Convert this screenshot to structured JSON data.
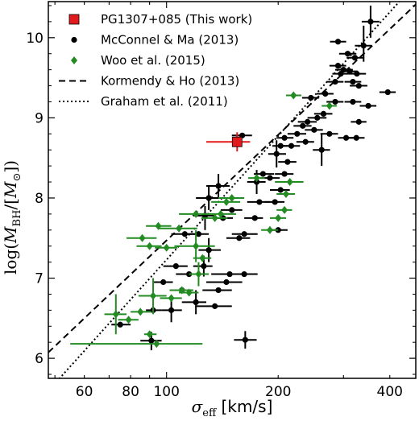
{
  "chart_data": {
    "type": "scatter",
    "x_scale": "log",
    "xlim": [
      48,
      470
    ],
    "ylim": [
      5.75,
      10.45
    ],
    "x_ticks": [
      60,
      80,
      100,
      200,
      400
    ],
    "y_ticks": [
      6,
      7,
      8,
      9,
      10
    ],
    "xlabel": {
      "symbol": "σ",
      "subscript": "eff",
      "unit": " [km/s]"
    },
    "ylabel": {
      "prefix": "log(",
      "m1": "M",
      "s1": "BH",
      "slash": "/[",
      "m2": "M",
      "s2": "⊙",
      "suffix": "])"
    },
    "legend_position": "top-left",
    "series": [
      {
        "name": "PG1307+085 (This work)",
        "marker": "square",
        "color": "#e31a1c",
        "points": [
          {
            "x": 155,
            "y": 8.7,
            "xlo": 128,
            "xhi": 168,
            "ylo": 8.58,
            "yhi": 8.82
          }
        ]
      },
      {
        "name": "McConnel & Ma (2013)",
        "marker": "circle",
        "color": "#000000",
        "points": [
          {
            "x": 75,
            "y": 6.42,
            "xlo": 71,
            "xhi": 80
          },
          {
            "x": 91,
            "y": 6.22,
            "xlo": 85,
            "xhi": 97,
            "ylo": 6.1,
            "yhi": 6.33
          },
          {
            "x": 92,
            "y": 6.6,
            "xlo": 88,
            "xhi": 97
          },
          {
            "x": 103,
            "y": 6.6,
            "xlo": 97,
            "xhi": 110,
            "ylo": 6.45,
            "yhi": 6.75
          },
          {
            "x": 98,
            "y": 6.95,
            "xlo": 92,
            "xhi": 104
          },
          {
            "x": 106,
            "y": 7.15,
            "xlo": 98,
            "xhi": 114
          },
          {
            "x": 110,
            "y": 6.85,
            "xlo": 102,
            "xhi": 118
          },
          {
            "x": 115,
            "y": 7.05,
            "xlo": 106,
            "xhi": 124
          },
          {
            "x": 120,
            "y": 6.7,
            "xlo": 110,
            "xhi": 128,
            "ylo": 6.55,
            "yhi": 6.85
          },
          {
            "x": 135,
            "y": 6.65,
            "xlo": 120,
            "xhi": 150
          },
          {
            "x": 138,
            "y": 6.85,
            "xlo": 125,
            "xhi": 150
          },
          {
            "x": 145,
            "y": 6.95,
            "xlo": 128,
            "xhi": 160
          },
          {
            "x": 148,
            "y": 7.05,
            "xlo": 132,
            "xhi": 162
          },
          {
            "x": 162,
            "y": 7.05,
            "xlo": 148,
            "xhi": 176
          },
          {
            "x": 126,
            "y": 7.15,
            "xlo": 118,
            "xhi": 133,
            "ylo": 7.02,
            "yhi": 7.28
          },
          {
            "x": 130,
            "y": 7.35,
            "xlo": 122,
            "xhi": 140,
            "ylo": 7.2,
            "yhi": 7.5
          },
          {
            "x": 122,
            "y": 7.55,
            "xlo": 114,
            "xhi": 130
          },
          {
            "x": 112,
            "y": 7.55,
            "xlo": 103,
            "xhi": 121
          },
          {
            "x": 127,
            "y": 7.78,
            "xlo": 118,
            "xhi": 136,
            "ylo": 7.6,
            "yhi": 7.9
          },
          {
            "x": 130,
            "y": 8.0,
            "xlo": 120,
            "xhi": 140,
            "ylo": 7.85,
            "yhi": 8.15
          },
          {
            "x": 142,
            "y": 7.75,
            "xlo": 133,
            "xhi": 151
          },
          {
            "x": 150,
            "y": 7.85,
            "xlo": 140,
            "xhi": 160
          },
          {
            "x": 157,
            "y": 7.5,
            "xlo": 145,
            "xhi": 168
          },
          {
            "x": 138,
            "y": 8.15,
            "xlo": 128,
            "xhi": 148,
            "ylo": 8.0,
            "yhi": 8.3
          },
          {
            "x": 162,
            "y": 7.55,
            "xlo": 150,
            "xhi": 176
          },
          {
            "x": 173,
            "y": 7.75,
            "xlo": 162,
            "xhi": 182
          },
          {
            "x": 178,
            "y": 7.95,
            "xlo": 165,
            "xhi": 190
          },
          {
            "x": 175,
            "y": 8.2,
            "xlo": 165,
            "xhi": 185,
            "ylo": 8.05,
            "yhi": 8.35
          },
          {
            "x": 182,
            "y": 8.3,
            "xlo": 172,
            "xhi": 195
          },
          {
            "x": 190,
            "y": 8.25,
            "xlo": 180,
            "xhi": 202
          },
          {
            "x": 196,
            "y": 7.95,
            "xlo": 184,
            "xhi": 208
          },
          {
            "x": 203,
            "y": 8.1,
            "xlo": 190,
            "xhi": 215
          },
          {
            "x": 208,
            "y": 8.3,
            "xlo": 196,
            "xhi": 220
          },
          {
            "x": 200,
            "y": 7.6,
            "xlo": 188,
            "xhi": 212
          },
          {
            "x": 198,
            "y": 8.55,
            "xlo": 188,
            "xhi": 210,
            "ylo": 8.38,
            "yhi": 8.72
          },
          {
            "x": 203,
            "y": 8.65,
            "xlo": 193,
            "xhi": 213
          },
          {
            "x": 208,
            "y": 8.75,
            "xlo": 198,
            "xhi": 220
          },
          {
            "x": 212,
            "y": 8.45,
            "xlo": 200,
            "xhi": 224
          },
          {
            "x": 217,
            "y": 8.65,
            "xlo": 205,
            "xhi": 229
          },
          {
            "x": 225,
            "y": 8.8,
            "xlo": 212,
            "xhi": 238
          },
          {
            "x": 233,
            "y": 8.9,
            "xlo": 220,
            "xhi": 246
          },
          {
            "x": 240,
            "y": 8.95,
            "xlo": 226,
            "xhi": 254
          },
          {
            "x": 237,
            "y": 8.7,
            "xlo": 224,
            "xhi": 250
          },
          {
            "x": 250,
            "y": 8.85,
            "xlo": 236,
            "xhi": 264
          },
          {
            "x": 255,
            "y": 9.0,
            "xlo": 240,
            "xhi": 270
          },
          {
            "x": 265,
            "y": 9.05,
            "xlo": 250,
            "xhi": 280
          },
          {
            "x": 262,
            "y": 8.6,
            "xlo": 248,
            "xhi": 276,
            "ylo": 8.4,
            "yhi": 8.8
          },
          {
            "x": 275,
            "y": 8.8,
            "xlo": 260,
            "xhi": 290
          },
          {
            "x": 268,
            "y": 9.3,
            "xlo": 254,
            "xhi": 282
          },
          {
            "x": 285,
            "y": 9.2,
            "xlo": 270,
            "xhi": 300
          },
          {
            "x": 285,
            "y": 9.45,
            "xlo": 270,
            "xhi": 300
          },
          {
            "x": 295,
            "y": 9.55,
            "xlo": 280,
            "xhi": 310
          },
          {
            "x": 300,
            "y": 9.6,
            "xlo": 285,
            "xhi": 318
          },
          {
            "x": 312,
            "y": 9.58,
            "xlo": 296,
            "xhi": 328
          },
          {
            "x": 318,
            "y": 9.45,
            "xlo": 302,
            "xhi": 335
          },
          {
            "x": 322,
            "y": 9.75,
            "xlo": 306,
            "xhi": 340
          },
          {
            "x": 326,
            "y": 9.55,
            "xlo": 310,
            "xhi": 345
          },
          {
            "x": 330,
            "y": 9.4,
            "xlo": 312,
            "xhi": 348
          },
          {
            "x": 290,
            "y": 9.65,
            "xlo": 275,
            "xhi": 305
          },
          {
            "x": 308,
            "y": 9.8,
            "xlo": 292,
            "xhi": 325
          },
          {
            "x": 340,
            "y": 9.9,
            "xlo": 322,
            "xhi": 358,
            "ylo": 9.7,
            "yhi": 10.15
          },
          {
            "x": 355,
            "y": 10.2,
            "xlo": 336,
            "xhi": 375,
            "ylo": 10.0,
            "yhi": 10.4
          },
          {
            "x": 290,
            "y": 9.95,
            "xlo": 276,
            "xhi": 305
          },
          {
            "x": 318,
            "y": 9.2,
            "xlo": 302,
            "xhi": 335
          },
          {
            "x": 305,
            "y": 8.75,
            "xlo": 290,
            "xhi": 320
          },
          {
            "x": 325,
            "y": 8.75,
            "xlo": 308,
            "xhi": 342
          },
          {
            "x": 350,
            "y": 9.15,
            "xlo": 332,
            "xhi": 368
          },
          {
            "x": 395,
            "y": 9.32,
            "xlo": 375,
            "xhi": 415
          },
          {
            "x": 330,
            "y": 8.95,
            "xlo": 314,
            "xhi": 346
          },
          {
            "x": 160,
            "y": 8.78,
            "xlo": 150,
            "xhi": 170
          },
          {
            "x": 163,
            "y": 6.23,
            "xlo": 152,
            "xhi": 175,
            "ylo": 6.12,
            "yhi": 6.34
          },
          {
            "x": 245,
            "y": 9.25,
            "xlo": 232,
            "xhi": 258
          }
        ]
      },
      {
        "name": "Woo et al. (2015)",
        "marker": "diamond",
        "color": "#228b22",
        "points": [
          {
            "x": 73,
            "y": 6.55,
            "xlo": 68,
            "xhi": 78,
            "ylo": 6.3,
            "yhi": 6.8
          },
          {
            "x": 79,
            "y": 6.48,
            "xlo": 74,
            "xhi": 84
          },
          {
            "x": 85,
            "y": 6.58,
            "xlo": 80,
            "xhi": 91
          },
          {
            "x": 90,
            "y": 6.3,
            "xlo": 87,
            "xhi": 94
          },
          {
            "x": 94,
            "y": 6.18,
            "xlo": 55,
            "xhi": 125
          },
          {
            "x": 92,
            "y": 6.78,
            "xlo": 84,
            "xhi": 100,
            "ylo": 6.55,
            "yhi": 7.0
          },
          {
            "x": 103,
            "y": 6.75,
            "xlo": 96,
            "xhi": 110
          },
          {
            "x": 110,
            "y": 6.85,
            "xlo": 102,
            "xhi": 118
          },
          {
            "x": 115,
            "y": 6.82,
            "xlo": 108,
            "xhi": 122
          },
          {
            "x": 122,
            "y": 7.05,
            "xlo": 115,
            "xhi": 130,
            "ylo": 6.9,
            "yhi": 7.2
          },
          {
            "x": 125,
            "y": 7.25,
            "xlo": 118,
            "xhi": 132
          },
          {
            "x": 120,
            "y": 7.4,
            "xlo": 105,
            "xhi": 135,
            "ylo": 7.2,
            "yhi": 7.6
          },
          {
            "x": 100,
            "y": 7.38,
            "xlo": 93,
            "xhi": 107
          },
          {
            "x": 86,
            "y": 7.5,
            "xlo": 78,
            "xhi": 94
          },
          {
            "x": 90,
            "y": 7.4,
            "xlo": 83,
            "xhi": 97
          },
          {
            "x": 95,
            "y": 7.65,
            "xlo": 88,
            "xhi": 103
          },
          {
            "x": 108,
            "y": 7.62,
            "xlo": 95,
            "xhi": 121
          },
          {
            "x": 120,
            "y": 7.8,
            "xlo": 108,
            "xhi": 132
          },
          {
            "x": 135,
            "y": 7.75,
            "xlo": 124,
            "xhi": 146
          },
          {
            "x": 140,
            "y": 7.8,
            "xlo": 126,
            "xhi": 154
          },
          {
            "x": 145,
            "y": 7.95,
            "xlo": 132,
            "xhi": 158
          },
          {
            "x": 150,
            "y": 8.0,
            "xlo": 138,
            "xhi": 162
          },
          {
            "x": 175,
            "y": 8.25,
            "xlo": 166,
            "xhi": 184
          },
          {
            "x": 190,
            "y": 7.6,
            "xlo": 180,
            "xhi": 200
          },
          {
            "x": 210,
            "y": 8.05,
            "xlo": 198,
            "xhi": 222
          },
          {
            "x": 215,
            "y": 8.2,
            "xlo": 196,
            "xhi": 234
          },
          {
            "x": 200,
            "y": 7.75,
            "xlo": 190,
            "xhi": 210
          },
          {
            "x": 220,
            "y": 9.28,
            "xlo": 210,
            "xhi": 231
          },
          {
            "x": 275,
            "y": 9.15,
            "xlo": 262,
            "xhi": 288
          },
          {
            "x": 208,
            "y": 7.85,
            "xlo": 198,
            "xhi": 218
          }
        ]
      }
    ],
    "lines": [
      {
        "name": "Kormendy & Ho (2013)",
        "style": "dashed",
        "slope": 4.38,
        "intercept": -1.29
      },
      {
        "name": "Graham et al. (2011)",
        "style": "dotted",
        "slope": 5.13,
        "intercept": -3.03
      }
    ]
  }
}
